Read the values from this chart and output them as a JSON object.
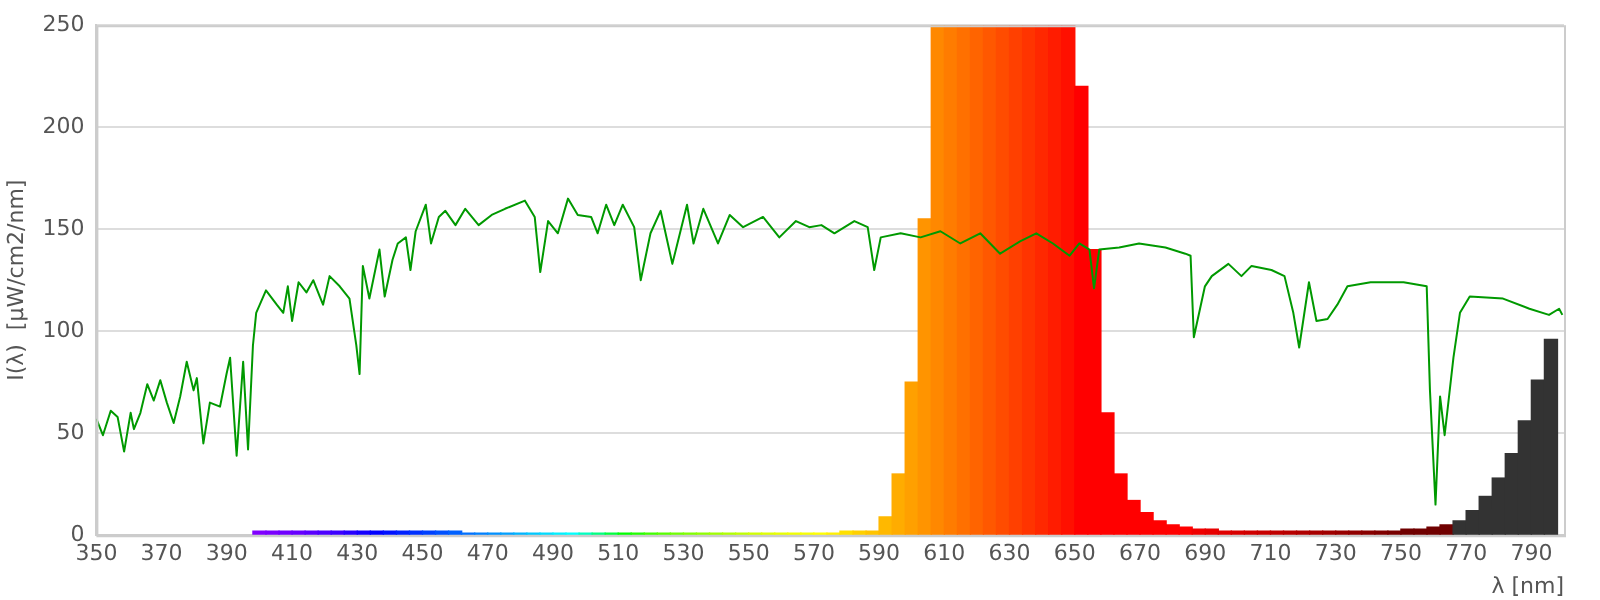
{
  "chart_data": {
    "type": "line",
    "xlabel": "λ [nm]",
    "ylabel": "I(λ)  [µW/cm2/nm]",
    "xlim": [
      350,
      800
    ],
    "xticks": [
      350,
      370,
      390,
      410,
      430,
      450,
      470,
      490,
      510,
      530,
      550,
      570,
      590,
      610,
      630,
      650,
      670,
      690,
      710,
      730,
      750,
      770,
      790
    ],
    "ylim": [
      0,
      250
    ],
    "yticks": [
      0,
      50,
      100,
      150,
      200,
      250
    ],
    "grid": "y",
    "legend": false,
    "marker": "none",
    "line_style": "solid",
    "series": [
      {
        "color": "#009900",
        "x": [
          350,
          352,
          354.4,
          356.5,
          358.5,
          360.5,
          361.5,
          363.5,
          365.6,
          367.6,
          369.6,
          371.6,
          373.7,
          375.7,
          377.7,
          379.8,
          380.8,
          382.8,
          384.8,
          387.9,
          389.9,
          391,
          393,
          395,
          396.5,
          398,
          399,
          402,
          405.3,
          407.3,
          408.7,
          410,
          412,
          414.4,
          416.5,
          418.5,
          419.5,
          421.5,
          424.6,
          427.6,
          429.7,
          430.7,
          431.7,
          433.7,
          436.8,
          438.4,
          440.8,
          442.4,
          444.9,
          446.3,
          447.9,
          451,
          452.6,
          455,
          457,
          460.1,
          463.1,
          467.2,
          471.2,
          475.3,
          481.4,
          484.4,
          486.1,
          488.5,
          491.5,
          494.6,
          497.6,
          501.7,
          503.7,
          506.3,
          508.8,
          511.4,
          514.9,
          516.9,
          519.9,
          523,
          526.6,
          531.1,
          533.1,
          536.1,
          540.6,
          544.2,
          548.3,
          554.4,
          559.4,
          564.5,
          568.6,
          572.3,
          576.3,
          582.4,
          586.5,
          588.5,
          590.5,
          596.6,
          602.7,
          608.8,
          614.9,
          621,
          627.1,
          633.2,
          638.2,
          643.3,
          648.4,
          651.4,
          654.5,
          655.9,
          657.5,
          663.6,
          669.7,
          677.8,
          683.9,
          685.5,
          686.5,
          689.9,
          692,
          697.1,
          701.1,
          704.2,
          710.3,
          714.3,
          717,
          718.8,
          721.8,
          724.1,
          727.5,
          730.5,
          733.6,
          740.7,
          750.8,
          757.9,
          758.9,
          760.6,
          762,
          763.4,
          766.1,
          768.1,
          771.1,
          781.3,
          789.4,
          795.4,
          798.5,
          799.5
        ],
        "values": [
          57,
          49,
          61,
          58,
          41,
          60,
          52,
          60,
          74,
          66,
          76,
          65,
          55,
          68,
          85,
          71,
          77,
          45,
          65,
          63,
          79,
          87,
          39,
          85,
          42,
          93,
          109,
          120,
          113,
          109,
          122,
          105,
          124,
          119,
          125,
          117,
          113,
          127,
          122,
          116,
          93,
          79,
          132,
          116,
          140,
          117,
          135,
          143,
          146,
          130,
          149,
          162,
          143,
          156,
          159,
          152,
          160,
          152,
          157,
          160,
          164,
          156,
          129,
          154,
          148,
          165,
          157,
          156,
          148,
          162,
          152,
          162,
          151,
          125,
          148,
          159,
          133,
          162,
          143,
          160,
          143,
          157,
          151,
          156,
          146,
          154,
          151,
          152,
          148,
          154,
          151,
          130,
          146,
          148,
          146,
          149,
          143,
          148,
          138,
          144,
          148,
          143,
          137,
          143,
          140,
          121,
          140,
          141,
          143,
          141,
          138,
          137,
          97,
          122,
          127,
          133,
          127,
          132,
          130,
          127,
          109,
          92,
          124,
          105,
          106,
          113,
          122,
          124,
          124,
          122,
          71,
          15,
          68,
          49,
          87,
          109,
          117,
          116,
          111,
          108,
          111,
          108
        ]
      },
      {
        "type": "bar",
        "x": [
          400,
          404,
          408,
          412,
          416,
          420,
          424,
          428,
          432,
          436,
          440,
          444,
          448,
          452,
          456,
          460,
          464,
          468,
          472,
          476,
          480,
          484,
          488,
          492,
          496,
          500,
          504,
          508,
          512,
          516,
          520,
          524,
          528,
          532,
          536,
          540,
          544,
          548,
          552,
          556,
          560,
          564,
          568,
          572,
          576,
          580,
          584,
          588,
          592,
          596,
          600,
          604,
          608,
          612,
          616,
          620,
          624,
          628,
          632,
          636,
          640,
          644,
          648,
          652,
          656,
          660,
          664,
          668,
          672,
          676,
          680,
          684,
          688,
          692,
          696,
          700,
          704,
          708,
          712,
          716,
          720,
          724,
          728,
          732,
          736,
          740,
          744,
          748,
          752,
          756,
          760,
          764,
          768,
          772,
          776,
          780,
          784,
          788,
          792,
          796
        ],
        "values": [
          2,
          2,
          2,
          2,
          2,
          2,
          2,
          2,
          2,
          2,
          2,
          2,
          2,
          2,
          2,
          2,
          1,
          1,
          1,
          1,
          1,
          1,
          1,
          1,
          1,
          1,
          1,
          1,
          1,
          1,
          1,
          1,
          1,
          1,
          1,
          1,
          1,
          1,
          1,
          1,
          1,
          1,
          1,
          1,
          1,
          2,
          2,
          2,
          9,
          30,
          75,
          155,
          250,
          250,
          250,
          250,
          250,
          250,
          250,
          250,
          250,
          250,
          250,
          220,
          140,
          60,
          30,
          17,
          11,
          7,
          5,
          4,
          3,
          3,
          2,
          2,
          2,
          2,
          2,
          2,
          2,
          2,
          2,
          2,
          2,
          2,
          2,
          2,
          3,
          3,
          4,
          5,
          7,
          12,
          19,
          28,
          40,
          56,
          76,
          96
        ],
        "colors": [
          "#8000ff",
          "#7a00ff",
          "#7000ff",
          "#6600ff",
          "#5a00ff",
          "#4c00ff",
          "#3c00ff",
          "#2800ff",
          "#1400ff",
          "#0000ff",
          "#0010ff",
          "#0020ff",
          "#0030ff",
          "#0040ff",
          "#0050ff",
          "#0060ff",
          "#0070ff",
          "#0080ff",
          "#0090ff",
          "#00a0ff",
          "#00b4ff",
          "#00c8ff",
          "#00dcff",
          "#00f0ff",
          "#00ffff",
          "#00ffc0",
          "#00ff80",
          "#00ff40",
          "#00ff00",
          "#20ff00",
          "#40ff00",
          "#58ff00",
          "#70ff00",
          "#80ff00",
          "#90ff00",
          "#a0ff00",
          "#b0ff00",
          "#c0ff00",
          "#d0ff00",
          "#e0ff00",
          "#e8ff00",
          "#f0ff00",
          "#f8ff00",
          "#ffff00",
          "#fff000",
          "#ffe000",
          "#ffd000",
          "#ffc400",
          "#ffb800",
          "#ffac00",
          "#ffa000",
          "#ff9400",
          "#ff8800",
          "#ff7c00",
          "#ff7000",
          "#ff6400",
          "#ff5800",
          "#ff4c00",
          "#ff4000",
          "#ff3400",
          "#ff2800",
          "#ff1c00",
          "#ff1000",
          "#ff0000",
          "#ff0000",
          "#ff0000",
          "#ff0000",
          "#ff0000",
          "#ff0000",
          "#ff0000",
          "#ff0000",
          "#ff0000",
          "#f00000",
          "#e80000",
          "#e00000",
          "#d80000",
          "#d00000",
          "#c80000",
          "#c00000",
          "#b80000",
          "#b00000",
          "#a80000",
          "#a00000",
          "#980000",
          "#900000",
          "#880000",
          "#800000",
          "#780000",
          "#700000",
          "#700000",
          "#700000",
          "#700000",
          "#333333",
          "#333333",
          "#333333",
          "#333333",
          "#333333",
          "#333333",
          "#333333",
          "#333333"
        ]
      }
    ]
  }
}
